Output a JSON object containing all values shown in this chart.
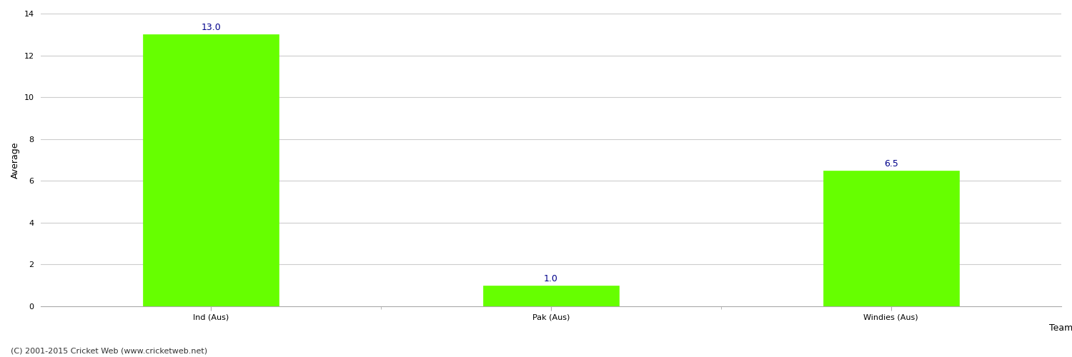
{
  "categories": [
    "Ind (Aus)",
    "Pak (Aus)",
    "Windies (Aus)"
  ],
  "values": [
    13.0,
    1.0,
    6.5
  ],
  "bar_color": "#66ff00",
  "bar_edge_color": "#66ff00",
  "xlabel": "Team",
  "ylabel": "Average",
  "ylim": [
    0,
    14
  ],
  "yticks": [
    0,
    2,
    4,
    6,
    8,
    10,
    12,
    14
  ],
  "annotation_color": "#00008B",
  "annotation_fontsize": 9,
  "axis_label_fontsize": 9,
  "tick_fontsize": 8,
  "grid_color": "#cccccc",
  "background_color": "#ffffff",
  "footer_text": "(C) 2001-2015 Cricket Web (www.cricketweb.net)",
  "footer_fontsize": 8,
  "footer_color": "#333333"
}
